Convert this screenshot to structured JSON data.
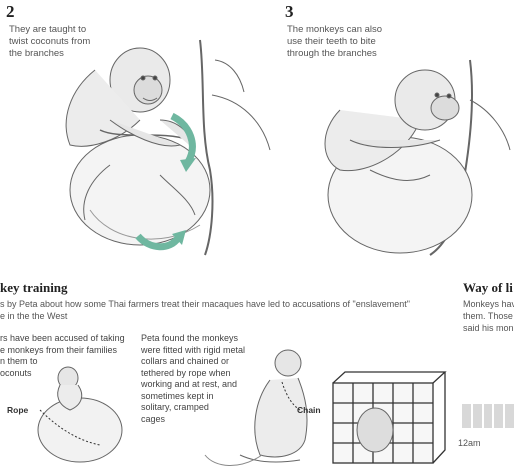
{
  "steps": [
    {
      "number": "2",
      "text_lines": [
        "They are taught to",
        "twist coconuts from",
        "the branches"
      ]
    },
    {
      "number": "3",
      "text_lines": [
        "The monkeys can also",
        "use their teeth to bite",
        "through the branches"
      ]
    }
  ],
  "training": {
    "title": "key training",
    "intro_lines": [
      "s by Peta about how some Thai farmers treat their macaques have led to accusations of \"enslavement\"",
      "e in the the West"
    ],
    "col1_lines": [
      "rs have been accused of taking",
      "e monkeys from their families",
      "n them to",
      "oconuts"
    ],
    "col2_lines": [
      "Peta found the monkeys",
      "were fitted with rigid metal",
      "collars and chained or",
      "tethered by rope when",
      "working and at rest, and",
      "sometimes kept in",
      "solitary, cramped",
      "cages"
    ],
    "rope_label": "Rope",
    "chain_label": "Chain"
  },
  "way_of_life": {
    "title": "Way of li",
    "text_lines": [
      "Monkeys hav",
      "them. Those",
      "said his monk"
    ],
    "time_label": "12am",
    "bar_color": "#d8d8d8"
  },
  "colors": {
    "arrow": "#6fb7a0",
    "ink": "#555555"
  }
}
